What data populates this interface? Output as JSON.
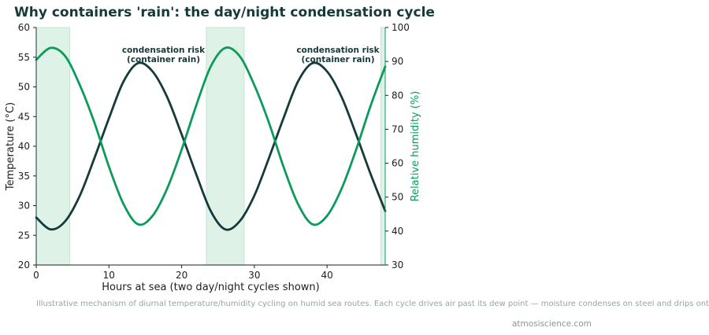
{
  "chart_data": {
    "type": "line",
    "title": "Why containers 'rain': the day/night condensation cycle",
    "xlabel": "Hours at sea (two day/night cycles shown)",
    "ylabel_left": "Temperature (°C)",
    "ylabel_right": "Relative humidity (%)",
    "xlim": [
      0,
      48
    ],
    "ylim_left": [
      20,
      60
    ],
    "ylim_right": [
      30,
      100
    ],
    "x_ticks": [
      "0",
      "10",
      "20",
      "30",
      "40"
    ],
    "y_left_ticks": [
      "20",
      "25",
      "30",
      "35",
      "40",
      "45",
      "50",
      "55",
      "60"
    ],
    "y_right_ticks": [
      "30",
      "40",
      "50",
      "60",
      "70",
      "80",
      "90",
      "100"
    ],
    "grid": false,
    "series": [
      {
        "axis": "left",
        "color": "#16393a",
        "x": [
          0,
          2,
          4,
          6,
          8,
          10,
          12,
          14,
          16,
          18,
          20,
          22,
          24,
          26,
          28,
          30,
          32,
          34,
          36,
          38,
          40,
          42,
          44,
          46,
          48
        ],
        "values": [
          28.0,
          26.0,
          27.4,
          31.7,
          38.0,
          44.7,
          50.9,
          54.0,
          52.6,
          48.3,
          42.0,
          35.3,
          29.1,
          26.0,
          27.4,
          31.7,
          38.0,
          44.7,
          50.9,
          54.0,
          52.6,
          48.3,
          42.0,
          35.3,
          29.1
        ]
      },
      {
        "axis": "right",
        "color": "#0b9b5a",
        "x": [
          0,
          2,
          4,
          6,
          8,
          10,
          12,
          14,
          16,
          18,
          20,
          22,
          24,
          26,
          28,
          30,
          32,
          34,
          36,
          38,
          40,
          42,
          44,
          46,
          48
        ],
        "values": [
          90.5,
          94.0,
          91.5,
          83.0,
          72.0,
          59.0,
          48.0,
          42.0,
          44.5,
          52.5,
          64.0,
          77.0,
          88.5,
          94.0,
          91.5,
          83.0,
          72.0,
          59.0,
          48.0,
          42.0,
          44.5,
          52.5,
          64.0,
          77.0,
          88.5
        ]
      }
    ],
    "shaded_bands": [
      {
        "x0": 0,
        "x1": 4.6
      },
      {
        "x0": 23.4,
        "x1": 28.6
      },
      {
        "x0": 47.4,
        "x1": 48
      }
    ],
    "annotations": [
      {
        "text": "condensation risk\n(container rain)",
        "x": 17.5,
        "y": 55
      },
      {
        "text": "condensation risk\n(container rain)",
        "x": 41.5,
        "y": 55
      }
    ],
    "caption": "Illustrative mechanism of diurnal temperature/humidity cycling on humid sea routes. Each cycle drives air past its dew point — moisture condenses on steel and drips onto cargo.",
    "credit": "atmosiscience.com"
  },
  "colors": {
    "temperature": "#16393a",
    "humidity": "#0b9b5a",
    "band": "#dff2e8",
    "band_edge": "#b7e2cb"
  }
}
